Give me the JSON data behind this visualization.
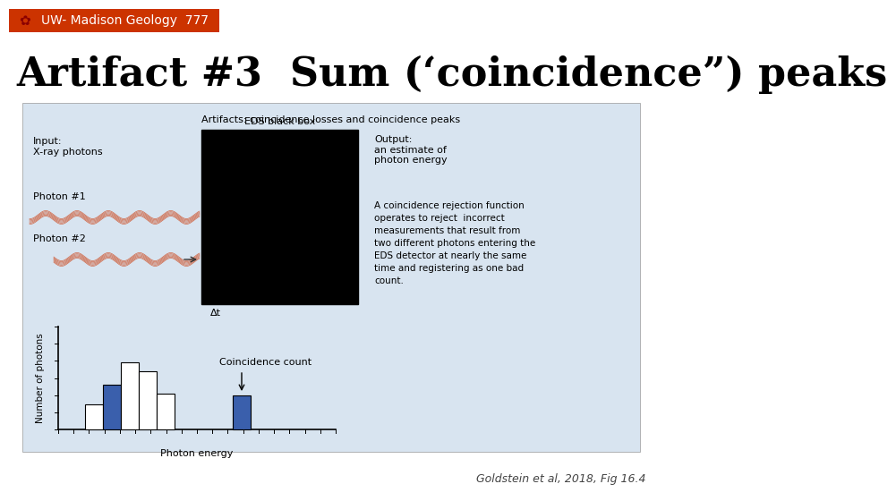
{
  "header_bg": "#cc3300",
  "header_text": "UW- Madison Geology  777",
  "header_text_color": "#ffffff",
  "header_font_size": 10,
  "slide_bg": "#ffffff",
  "title_text": "Artifact #3  Sum (‘coincidence”) peaks",
  "title_font_size": 32,
  "title_color": "#000000",
  "citation": "Goldstein et al, 2018, Fig 16.4",
  "citation_color": "#444444",
  "citation_font_size": 9,
  "figure_bg": "#d8e4f0",
  "inner_title": "Artifacts: coincidence losses and coincidence peaks",
  "wavy_color": "#cc3300",
  "input_label": "Input:\nX-ray photons",
  "output_label": "Output:\nan estimate of\nphoton energy",
  "eds_label": "EDS black box",
  "photon1_label": "Photon #1",
  "photon2_label": "Photon #2",
  "dt_label": "Δt",
  "reject_text": "A coincidence rejection function\noperates to reject  incorrect\nmeasurements that result from\ntwo different photons entering the\nEDS detector at nearly the same\ntime and registering as one bad\ncount.",
  "coincidence_label": "Coincidence count",
  "hist_outline": "#000000",
  "photon_energy_label": "Photon energy",
  "num_photons_label": "Number of photons"
}
